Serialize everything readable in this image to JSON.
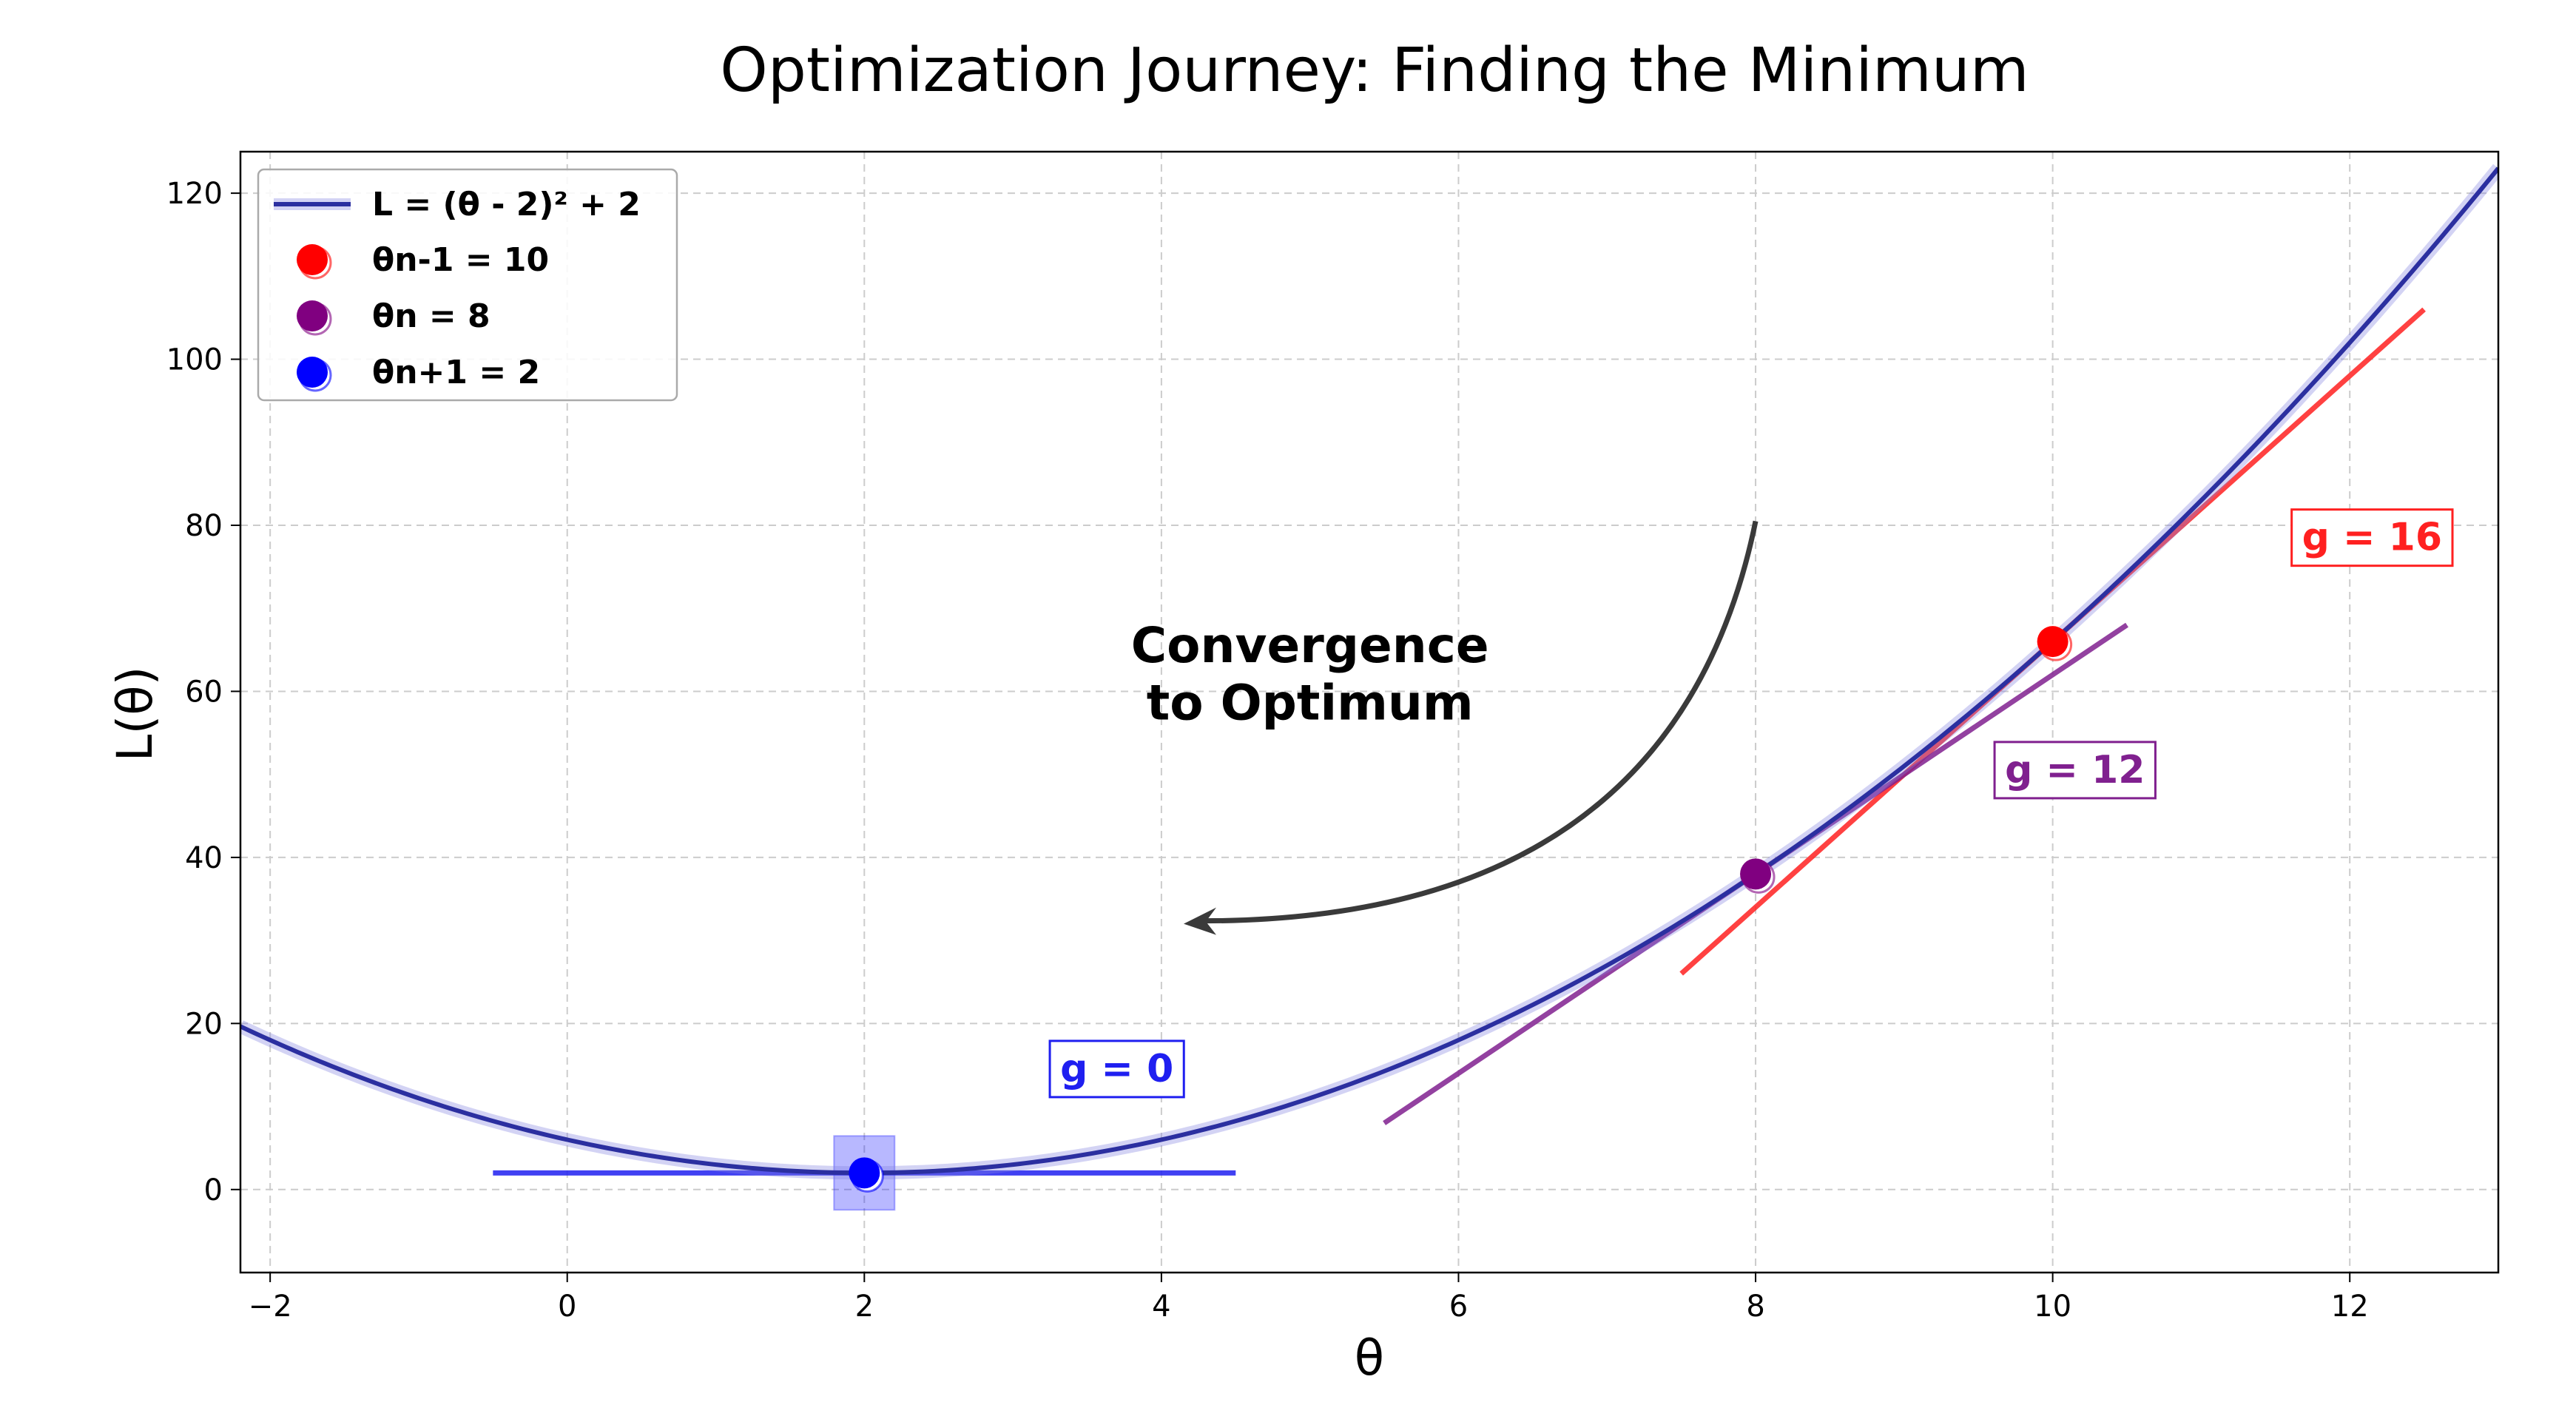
{
  "chart_data": {
    "type": "line",
    "title": "Optimization Journey: Finding the Minimum",
    "xlabel": "θ",
    "ylabel": "L(θ)",
    "xlim": [
      -2.2,
      13
    ],
    "ylim": [
      -10,
      125
    ],
    "xticks": [
      -2,
      0,
      2,
      4,
      6,
      8,
      10,
      12
    ],
    "yticks": [
      0,
      20,
      40,
      60,
      80,
      100,
      120
    ],
    "grid": true,
    "legend_position": "top-left",
    "curve": {
      "name": "L = (θ - 2)² + 2",
      "formula": "(θ - 2)^2 + 2",
      "color": "#2b2fa0"
    },
    "points": [
      {
        "name": "θn-1 = 10",
        "x": 10,
        "y": 66,
        "color": "#ff0000"
      },
      {
        "name": "θn = 8",
        "x": 8,
        "y": 38,
        "color": "#800080"
      },
      {
        "name": "θn+1 = 2",
        "x": 2,
        "y": 2,
        "color": "#0000ff"
      }
    ],
    "tangents": [
      {
        "label": "g = 16",
        "x0": 10,
        "y0": 66,
        "slope": 16,
        "x_from": 7.5,
        "x_to": 12.5,
        "color": "#ff2020",
        "label_x": 12.15,
        "label_y": 77
      },
      {
        "label": "g = 12",
        "x0": 8,
        "y0": 38,
        "slope": 12,
        "x_from": 5.5,
        "x_to": 10.5,
        "color": "#80208f",
        "label_x": 10.15,
        "label_y": 49
      },
      {
        "label": "g = 0",
        "x0": 2,
        "y0": 2,
        "slope": 0,
        "x_from": -0.5,
        "x_to": 4.5,
        "color": "#1f1ff0",
        "label_x": 3.7,
        "label_y": 13
      }
    ],
    "annotation": {
      "line1": "Convergence",
      "line2": "to Optimum",
      "arrow_from": [
        8,
        80.5
      ],
      "arrow_to": [
        4.15,
        32
      ]
    }
  }
}
